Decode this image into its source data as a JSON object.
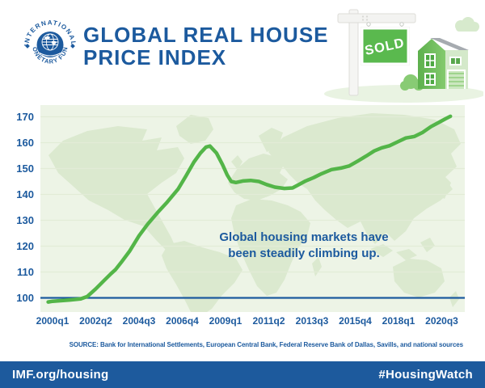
{
  "header": {
    "logo_top": "INTERNATIONAL",
    "logo_bottom": "MONETARY FUND",
    "title_line1": "GLOBAL REAL HOUSE",
    "title_line2": "PRICE INDEX",
    "sold_sign_label": "SOLD"
  },
  "chart_data": {
    "type": "line",
    "title": "Global Real House Price Index",
    "x_tick_labels": [
      "2000q1",
      "2002q2",
      "2004q3",
      "2006q4",
      "2009q1",
      "2011q2",
      "2013q3",
      "2015q4",
      "2018q1",
      "2020q3"
    ],
    "y_ticks": [
      100,
      110,
      120,
      130,
      140,
      150,
      160,
      170
    ],
    "ylim": [
      96,
      172
    ],
    "baseline_value": 100,
    "grid": true,
    "x_unit": "x_tick_index (fractional position along evenly spaced quarter labels)",
    "annotation_lines": [
      "Global housing markets have",
      "been steadily climbing up."
    ],
    "series": [
      {
        "name": "global_real_house_price_index",
        "color": "#53b548",
        "points": [
          [
            -0.1,
            98.4
          ],
          [
            0.0,
            98.7
          ],
          [
            0.4,
            99.2
          ],
          [
            0.65,
            99.6
          ],
          [
            0.8,
            100.5
          ],
          [
            1.0,
            103.5
          ],
          [
            1.18,
            106.5
          ],
          [
            1.35,
            109.3
          ],
          [
            1.46,
            111.0
          ],
          [
            1.6,
            114.0
          ],
          [
            1.78,
            118.0
          ],
          [
            2.0,
            124.0
          ],
          [
            2.2,
            128.5
          ],
          [
            2.43,
            133.0
          ],
          [
            2.65,
            137.0
          ],
          [
            2.9,
            142.0
          ],
          [
            3.08,
            147.0
          ],
          [
            3.27,
            152.5
          ],
          [
            3.42,
            156.0
          ],
          [
            3.55,
            158.3
          ],
          [
            3.64,
            158.7
          ],
          [
            3.79,
            156.0
          ],
          [
            3.93,
            151.5
          ],
          [
            4.04,
            147.5
          ],
          [
            4.13,
            145.0
          ],
          [
            4.24,
            144.6
          ],
          [
            4.4,
            145.2
          ],
          [
            4.58,
            145.4
          ],
          [
            4.77,
            145.0
          ],
          [
            4.95,
            143.8
          ],
          [
            5.14,
            142.8
          ],
          [
            5.36,
            142.3
          ],
          [
            5.55,
            142.5
          ],
          [
            5.7,
            143.8
          ],
          [
            5.85,
            145.2
          ],
          [
            6.04,
            146.5
          ],
          [
            6.22,
            148.0
          ],
          [
            6.45,
            149.6
          ],
          [
            6.67,
            150.2
          ],
          [
            6.86,
            151.0
          ],
          [
            7.07,
            153.0
          ],
          [
            7.25,
            154.8
          ],
          [
            7.44,
            156.8
          ],
          [
            7.61,
            158.0
          ],
          [
            7.79,
            158.8
          ],
          [
            7.98,
            160.3
          ],
          [
            8.17,
            161.8
          ],
          [
            8.37,
            162.4
          ],
          [
            8.56,
            164.0
          ],
          [
            8.75,
            166.2
          ],
          [
            8.93,
            167.8
          ],
          [
            9.08,
            169.2
          ],
          [
            9.2,
            170.2
          ]
        ]
      }
    ]
  },
  "source": "SOURCE: Bank for International Settlements, European Central Bank, Federal Reserve Bank of Dallas, Savills, and national sources",
  "footer": {
    "left": "IMF.org/housing",
    "right": "#HousingWatch"
  },
  "colors": {
    "imf_blue": "#1c5a9e",
    "footer_blue": "#1d5a9d",
    "line_green": "#53b548",
    "map_green": "#dbe9cf",
    "plot_background": "#edf4e6",
    "gridline": "#e2ecd7",
    "sign_green": "#5ab94e"
  }
}
